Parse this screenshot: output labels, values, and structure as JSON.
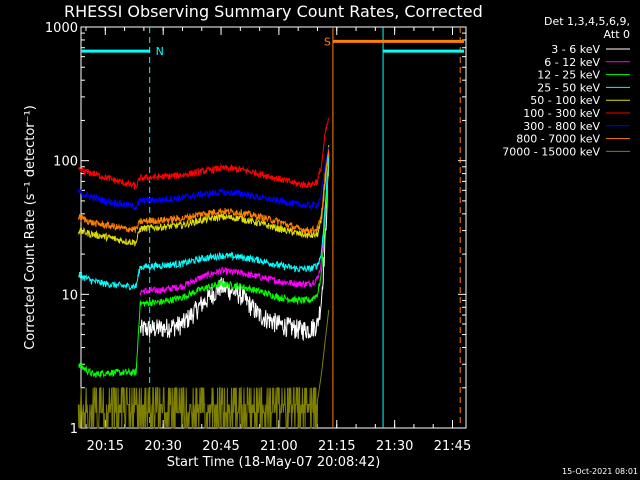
{
  "chart_data": {
    "type": "line",
    "title": "RHESSI Observing Summary Count Rates, Corrected",
    "xlabel": "Start Time (18-May-07 20:08:42)",
    "ylabel": "Corrected Count Rate (s⁻¹ detector⁻¹)",
    "y_scale": "log",
    "ylim": [
      1,
      1000
    ],
    "xlim": [
      "20:08:42",
      "21:48:30"
    ],
    "x_tick_labels": [
      "20:15",
      "20:30",
      "20:45",
      "21:00",
      "21:15",
      "21:30",
      "21:45"
    ],
    "y_tick_labels": [
      "1",
      "10",
      "100",
      "1000"
    ],
    "legend_header": [
      "Det 1,3,4,5,6,9,",
      "Att 0"
    ],
    "legend_placement": "right",
    "grid": false,
    "series": [
      {
        "name": "3 - 6 keV",
        "color": "#ffffff",
        "x": [
          "20:08",
          "20:15",
          "20:20",
          "20:23",
          "20:24",
          "20:30",
          "20:35",
          "20:40",
          "20:45",
          "20:50",
          "20:55",
          "21:00",
          "21:05",
          "21:08",
          "21:10",
          "21:11",
          "21:12",
          "21:13"
        ],
        "y": [
          null,
          null,
          null,
          null,
          5.5,
          5.6,
          6,
          8.5,
          11.5,
          10,
          7,
          6,
          5.5,
          5.5,
          6,
          9,
          25,
          110
        ]
      },
      {
        "name": "6 - 12 keV",
        "color": "#ff00ff",
        "x": [
          "20:24",
          "20:30",
          "20:35",
          "20:40",
          "20:45",
          "20:50",
          "20:55",
          "21:00",
          "21:05",
          "21:08",
          "21:10",
          "21:11",
          "21:12",
          "21:13"
        ],
        "y": [
          10.5,
          10.8,
          11.5,
          13.5,
          15,
          14.5,
          13.5,
          12.5,
          12,
          12,
          13,
          17,
          40,
          120
        ]
      },
      {
        "name": "12 - 25 keV",
        "color": "#00ff00",
        "x": [
          "20:08",
          "20:12",
          "20:15",
          "20:20",
          "20:23",
          "20:24",
          "20:30",
          "20:35",
          "20:40",
          "20:45",
          "20:50",
          "20:55",
          "21:00",
          "21:05",
          "21:08",
          "21:10",
          "21:11",
          "21:12",
          "21:13"
        ],
        "y": [
          3,
          2.5,
          2.6,
          2.6,
          2.6,
          8.5,
          8.8,
          9.5,
          11,
          12,
          11.5,
          10.5,
          9.5,
          9,
          9,
          10,
          14,
          35,
          120
        ]
      },
      {
        "name": "25 - 50 keV",
        "color": "#00ffff",
        "x": [
          "20:08",
          "20:12",
          "20:15",
          "20:20",
          "20:23",
          "20:24",
          "20:30",
          "20:35",
          "20:40",
          "20:45",
          "20:50",
          "20:55",
          "21:00",
          "21:05",
          "21:08",
          "21:10",
          "21:11",
          "21:12",
          "21:13"
        ],
        "y": [
          14,
          12.5,
          12,
          11.5,
          11.5,
          16,
          16.5,
          17,
          18.5,
          19.5,
          19,
          18,
          16.5,
          15.5,
          15.5,
          16.5,
          20,
          45,
          120
        ]
      },
      {
        "name": "50 - 100 keV",
        "color": "#dddd00",
        "x": [
          "20:08",
          "20:12",
          "20:15",
          "20:20",
          "20:23",
          "20:24",
          "20:30",
          "20:35",
          "20:40",
          "20:45",
          "20:50",
          "20:55",
          "21:00",
          "21:05",
          "21:08",
          "21:10",
          "21:11",
          "21:12",
          "21:13"
        ],
        "y": [
          30,
          28,
          27,
          25,
          24.5,
          31,
          32,
          33,
          36,
          38,
          37,
          34,
          31,
          28.5,
          27.5,
          28,
          35,
          70,
          130
        ]
      },
      {
        "name": "100 - 300 keV",
        "color": "#ff0000",
        "x": [
          "20:08",
          "20:12",
          "20:15",
          "20:20",
          "20:23",
          "20:24",
          "20:30",
          "20:35",
          "20:40",
          "20:45",
          "20:50",
          "20:55",
          "21:00",
          "21:05",
          "21:08",
          "21:10",
          "21:11",
          "21:12",
          "21:13"
        ],
        "y": [
          85,
          80,
          75,
          68,
          64,
          74,
          76,
          78,
          83,
          88,
          86,
          80,
          73,
          67,
          66,
          70,
          90,
          160,
          210
        ]
      },
      {
        "name": "300 - 800 keV",
        "color": "#0000ff",
        "x": [
          "20:08",
          "20:12",
          "20:15",
          "20:20",
          "20:23",
          "20:24",
          "20:30",
          "20:35",
          "20:40",
          "20:45",
          "20:50",
          "20:55",
          "21:00",
          "21:05",
          "21:08",
          "21:10",
          "21:11",
          "21:12",
          "21:13"
        ],
        "y": [
          58,
          53,
          50,
          47,
          45,
          50,
          51,
          53,
          56,
          58,
          57,
          53,
          50,
          47,
          46,
          47,
          55,
          95,
          130
        ]
      },
      {
        "name": "800 - 7000 keV",
        "color": "#ff8000",
        "x": [
          "20:08",
          "20:12",
          "20:15",
          "20:20",
          "20:23",
          "20:24",
          "20:30",
          "20:35",
          "20:40",
          "20:45",
          "20:50",
          "20:55",
          "21:00",
          "21:05",
          "21:08",
          "21:10",
          "21:11",
          "21:12",
          "21:13"
        ],
        "y": [
          38,
          34,
          33,
          31,
          30.5,
          35,
          36,
          37,
          40,
          42,
          41,
          38,
          35,
          31,
          30,
          31,
          38,
          80,
          120
        ]
      },
      {
        "name": "7000 - 15000 keV",
        "color": "#808000",
        "x": [
          "20:08",
          "20:15",
          "20:23",
          "20:24",
          "20:35",
          "20:40",
          "20:45",
          "20:50",
          "20:55",
          "20:59",
          "21:00",
          "21:07",
          "21:08",
          "21:10",
          "21:11",
          "21:12",
          "21:13"
        ],
        "y": [
          1.5,
          1.4,
          1.4,
          1.3,
          1.3,
          1.7,
          1.7,
          1.7,
          1.7,
          1.5,
          1.3,
          1.3,
          1.6,
          1.6,
          2.5,
          4.5,
          8
        ]
      }
    ],
    "flag_bars": [
      {
        "label": "N",
        "color": "#00ffff",
        "y": 660,
        "x_start": "20:08:42",
        "x_end": "20:26:30"
      },
      {
        "label": "S",
        "color": "#ff8000",
        "y": 780,
        "x_start": "21:14",
        "x_end": "21:48"
      },
      {
        "label": "",
        "color": "#00ffff",
        "y": 660,
        "x_start": "21:27",
        "x_end": "21:48"
      }
    ],
    "markers": [
      {
        "color": "#00ffff",
        "style": "dashed",
        "x": "20:26:30"
      },
      {
        "color": "#ff8000",
        "style": "solid",
        "x": "21:14:00"
      },
      {
        "color": "#00ffff",
        "style": "solid",
        "x": "21:27:00"
      },
      {
        "color": "#ff8000",
        "style": "dashed",
        "x": "21:47:00"
      }
    ],
    "timestamp": "15-Oct-2021 08:01"
  }
}
